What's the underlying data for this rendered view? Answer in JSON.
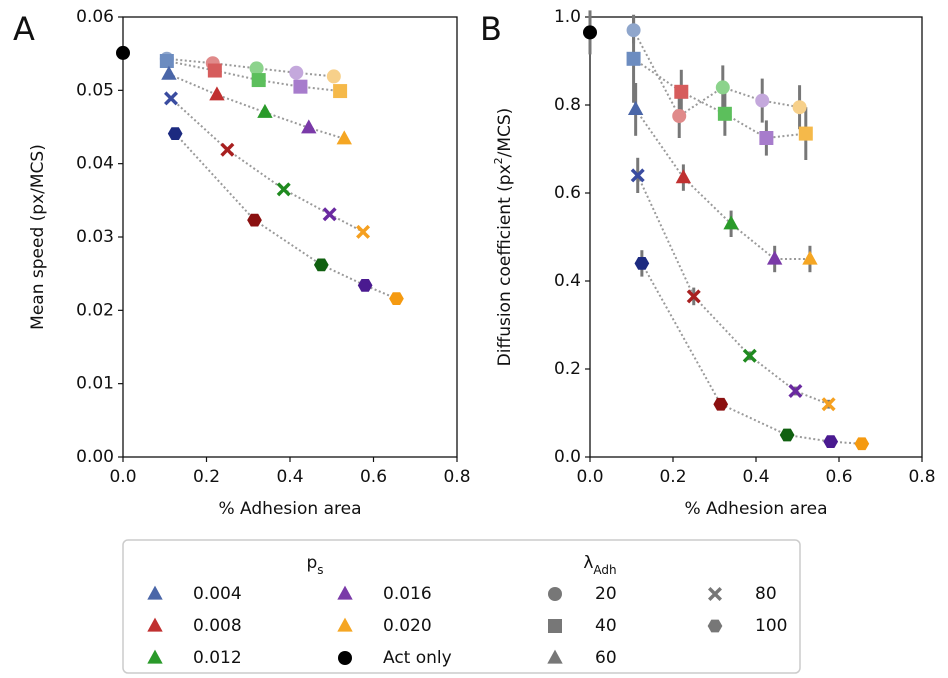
{
  "chart_data": [
    {
      "type": "scatter",
      "panel_label": "A",
      "x_label": "% Adhesion area",
      "y_label": "Mean speed (px/MCS)",
      "xlim": [
        0,
        0.8
      ],
      "xticks": [
        {
          "value": 0,
          "label": "0.0"
        },
        0.2,
        0.4,
        0.6,
        0.8
      ],
      "ylim": [
        0,
        0.06
      ],
      "yticks": [
        {
          "value": 0,
          "label": "0.00"
        },
        0.01,
        0.02,
        0.03,
        0.04,
        0.05,
        0.06
      ],
      "series": [
        {
          "marker": "circle",
          "line": true,
          "colors": [
            "#8fa6cc",
            "#e08a8a",
            "#8cd38c",
            "#c4a8dc",
            "#f7d08a"
          ],
          "x": [
            0.105,
            0.215,
            0.32,
            0.415,
            0.505
          ],
          "values": [
            0.0543,
            0.0537,
            0.053,
            0.0524,
            0.0519
          ]
        },
        {
          "marker": "square",
          "line": true,
          "colors": [
            "#6c8cc0",
            "#d65c5c",
            "#5cbf5c",
            "#a77ccc",
            "#f5b94a"
          ],
          "x": [
            0.105,
            0.22,
            0.325,
            0.425,
            0.52
          ],
          "values": [
            0.054,
            0.0527,
            0.0514,
            0.0505,
            0.0499
          ]
        },
        {
          "marker": "triangle",
          "line": true,
          "colors": [
            "#4a66a8",
            "#c03030",
            "#2a9a2a",
            "#7a3aa8",
            "#f5a623"
          ],
          "x": [
            0.11,
            0.225,
            0.34,
            0.445,
            0.53
          ],
          "values": [
            0.0522,
            0.0494,
            0.047,
            0.0449,
            0.0434
          ]
        },
        {
          "marker": "x",
          "line": true,
          "colors": [
            "#3a4ca0",
            "#a82020",
            "#1f8a1f",
            "#6a2aa0",
            "#f5a020"
          ],
          "x": [
            0.115,
            0.25,
            0.385,
            0.495,
            0.575
          ],
          "values": [
            0.0489,
            0.0419,
            0.0365,
            0.0331,
            0.0307
          ]
        },
        {
          "marker": "hexagon",
          "line": true,
          "colors": [
            "#1c2a80",
            "#8b1010",
            "#106010",
            "#4a1a90",
            "#f59a10"
          ],
          "x": [
            0.125,
            0.315,
            0.475,
            0.58,
            0.655
          ],
          "values": [
            0.0441,
            0.0323,
            0.0262,
            0.0234,
            0.0216
          ]
        },
        {
          "marker": "circle",
          "line": false,
          "colors": [
            "#000000"
          ],
          "x": [
            0
          ],
          "values": [
            0.0551
          ]
        }
      ]
    },
    {
      "type": "scatter",
      "panel_label": "B",
      "x_label": "% Adhesion area",
      "y_label": {
        "before": "Diffusion coefficient (px",
        "sup": "2",
        "after": "/MCS)"
      },
      "xlim": [
        0,
        0.8
      ],
      "xticks": [
        {
          "value": 0,
          "label": "0.0"
        },
        0.2,
        0.4,
        0.6,
        0.8
      ],
      "ylim": [
        0,
        1
      ],
      "yticks": [
        {
          "value": 0,
          "label": "0.0"
        },
        0.2,
        0.4,
        0.6,
        0.8,
        {
          "value": 1,
          "label": "1.0"
        }
      ],
      "series": [
        {
          "marker": "circle",
          "line": true,
          "colors": [
            "#8fa6cc",
            "#e08a8a",
            "#8cd38c",
            "#c4a8dc",
            "#f7d08a"
          ],
          "x": [
            0.105,
            0.215,
            0.32,
            0.415,
            0.505
          ],
          "values": [
            0.97,
            0.775,
            0.84,
            0.81,
            0.795
          ],
          "errors": [
            0.03,
            0.05,
            0.05,
            0.05,
            0.05
          ]
        },
        {
          "marker": "square",
          "line": true,
          "colors": [
            "#6c8cc0",
            "#d65c5c",
            "#5cbf5c",
            "#a77ccc",
            "#f5b94a"
          ],
          "x": [
            0.105,
            0.22,
            0.325,
            0.425,
            0.52
          ],
          "values": [
            0.905,
            0.83,
            0.78,
            0.725,
            0.735
          ],
          "errors": [
            0.1,
            0.05,
            0.05,
            0.04,
            0.06
          ]
        },
        {
          "marker": "triangle",
          "line": true,
          "colors": [
            "#4a66a8",
            "#c03030",
            "#2a9a2a",
            "#7a3aa8",
            "#f5a623"
          ],
          "x": [
            0.11,
            0.225,
            0.34,
            0.445,
            0.53
          ],
          "values": [
            0.79,
            0.635,
            0.53,
            0.45,
            0.45
          ],
          "errors": [
            0.06,
            0.03,
            0.03,
            0.03,
            0.03
          ]
        },
        {
          "marker": "x",
          "line": true,
          "colors": [
            "#3a4ca0",
            "#a82020",
            "#1f8a1f",
            "#6a2aa0",
            "#f5a020"
          ],
          "x": [
            0.115,
            0.25,
            0.385,
            0.495,
            0.575
          ],
          "values": [
            0.64,
            0.365,
            0.23,
            0.15,
            0.12
          ],
          "errors": [
            0.04,
            0.02,
            0.01,
            0.01,
            0.01
          ]
        },
        {
          "marker": "hexagon",
          "line": true,
          "colors": [
            "#1c2a80",
            "#8b1010",
            "#106010",
            "#4a1a90",
            "#f59a10"
          ],
          "x": [
            0.125,
            0.315,
            0.475,
            0.58,
            0.655
          ],
          "values": [
            0.44,
            0.12,
            0.05,
            0.035,
            0.03
          ],
          "errors": [
            0.03,
            0.01,
            0.01,
            0.01,
            0.01
          ]
        },
        {
          "marker": "circle",
          "line": false,
          "colors": [
            "#000000"
          ],
          "x": [
            0
          ],
          "values": [
            0.965
          ],
          "errors": [
            0.05
          ]
        }
      ]
    }
  ],
  "legend": {
    "color_title": {
      "main": "p",
      "sub": "s"
    },
    "colors": [
      {
        "label": "0.004",
        "color": "#4a66a8"
      },
      {
        "label": "0.008",
        "color": "#c03030"
      },
      {
        "label": "0.012",
        "color": "#2a9a2a"
      },
      {
        "label": "0.016",
        "color": "#7a3aa8"
      },
      {
        "label": "0.020",
        "color": "#f5a623"
      },
      {
        "label": "Act only",
        "color": "#000000"
      }
    ],
    "marker_title": {
      "main": "λ",
      "sub": "Adh"
    },
    "markers": [
      {
        "label": "20",
        "marker": "circle"
      },
      {
        "label": "40",
        "marker": "square"
      },
      {
        "label": "60",
        "marker": "triangle"
      },
      {
        "label": "80",
        "marker": "x"
      },
      {
        "label": "100",
        "marker": "hexagon"
      }
    ]
  }
}
